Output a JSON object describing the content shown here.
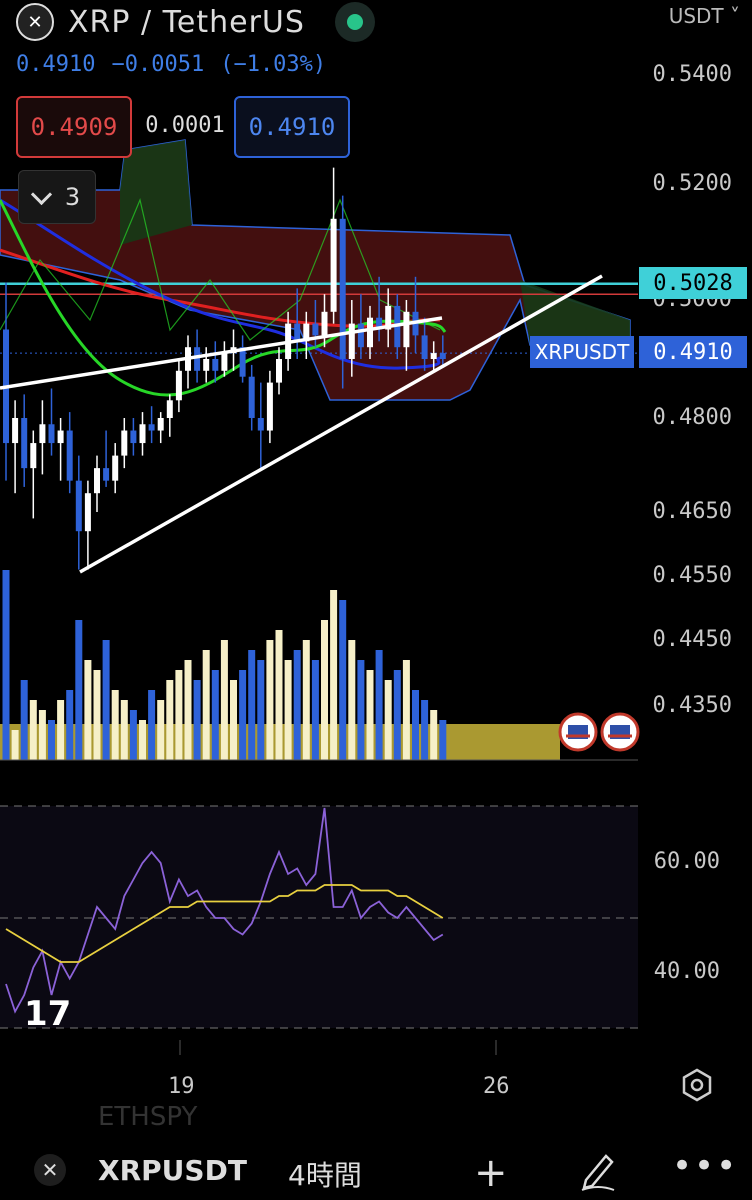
{
  "header": {
    "logo_icon": "xrp-logo-icon",
    "title": "XRP / TetherUS",
    "live_icon": "live-status-dot-icon",
    "last_price": "0.4910",
    "change": "−0.0051",
    "change_pct": "(−1.03%)",
    "currency": "USDT ˅"
  },
  "order": {
    "bid": "0.4909",
    "spread": "0.0001",
    "ask": "0.4910"
  },
  "indicators_collapse": {
    "count": "3",
    "icon": "chevron-down-icon"
  },
  "price_axis": {
    "labels": [
      "0.5400",
      "0.5200",
      "0.5000",
      "0.4800",
      "0.4650",
      "0.4550",
      "0.4450",
      "0.4350"
    ],
    "highlight": "0.5028",
    "current": "0.4910",
    "symbol_tag": "XRPUSDT"
  },
  "rsi_axis": {
    "labels": [
      "60.00",
      "40.00"
    ]
  },
  "time_axis": {
    "labels": [
      "19",
      "26"
    ]
  },
  "watermark": "17",
  "ghost_text": "ETHSPY",
  "toolbar": {
    "close_icon": "close-icon",
    "symbol": "XRPUSDT",
    "interval": "4時間",
    "plus": "+",
    "draw_icon": "pencil-draw-icon",
    "more": "•••"
  },
  "colors": {
    "up": "#ffffff",
    "down": "#2e62d8",
    "ma_fast": "#27d627",
    "ma_mid": "#e02020",
    "ma_slow": "#1f2ee0",
    "cloud_bear": "#5a1414",
    "cloud_bull": "#163a16",
    "cyan": "#3fd0d8",
    "rsi": "#8b62d8",
    "rsi_ma": "#e8d040",
    "trend": "#ffffff"
  },
  "chart_data": {
    "type": "candlestick",
    "symbol": "XRPUSDT",
    "interval": "4時間",
    "y_ticks": [
      0.54,
      0.52,
      0.5,
      0.48,
      0.465,
      0.455,
      0.445,
      0.435
    ],
    "horizontal_lines": [
      0.5028,
      0.501
    ],
    "last_price": 0.491,
    "candles": [
      [
        0.495,
        0.503,
        0.47,
        0.476
      ],
      [
        0.476,
        0.483,
        0.468,
        0.48
      ],
      [
        0.48,
        0.484,
        0.469,
        0.472
      ],
      [
        0.472,
        0.478,
        0.464,
        0.476
      ],
      [
        0.476,
        0.483,
        0.471,
        0.479
      ],
      [
        0.479,
        0.485,
        0.474,
        0.476
      ],
      [
        0.476,
        0.48,
        0.47,
        0.478
      ],
      [
        0.478,
        0.481,
        0.468,
        0.47
      ],
      [
        0.47,
        0.474,
        0.456,
        0.462
      ],
      [
        0.462,
        0.47,
        0.456,
        0.468
      ],
      [
        0.468,
        0.474,
        0.465,
        0.472
      ],
      [
        0.472,
        0.478,
        0.469,
        0.47
      ],
      [
        0.47,
        0.476,
        0.468,
        0.474
      ],
      [
        0.474,
        0.48,
        0.472,
        0.478
      ],
      [
        0.478,
        0.48,
        0.474,
        0.476
      ],
      [
        0.476,
        0.481,
        0.474,
        0.479
      ],
      [
        0.479,
        0.482,
        0.476,
        0.478
      ],
      [
        0.478,
        0.481,
        0.476,
        0.48
      ],
      [
        0.48,
        0.484,
        0.477,
        0.483
      ],
      [
        0.483,
        0.49,
        0.481,
        0.488
      ],
      [
        0.488,
        0.494,
        0.485,
        0.492
      ],
      [
        0.492,
        0.495,
        0.486,
        0.488
      ],
      [
        0.488,
        0.492,
        0.486,
        0.49
      ],
      [
        0.49,
        0.493,
        0.486,
        0.488
      ],
      [
        0.488,
        0.493,
        0.487,
        0.491
      ],
      [
        0.491,
        0.495,
        0.488,
        0.492
      ],
      [
        0.492,
        0.494,
        0.486,
        0.487
      ],
      [
        0.487,
        0.489,
        0.478,
        0.48
      ],
      [
        0.48,
        0.486,
        0.472,
        0.478
      ],
      [
        0.478,
        0.488,
        0.476,
        0.486
      ],
      [
        0.486,
        0.492,
        0.484,
        0.49
      ],
      [
        0.49,
        0.498,
        0.488,
        0.496
      ],
      [
        0.496,
        0.502,
        0.49,
        0.493
      ],
      [
        0.493,
        0.498,
        0.49,
        0.496
      ],
      [
        0.496,
        0.5,
        0.492,
        0.494
      ],
      [
        0.494,
        0.501,
        0.492,
        0.498
      ],
      [
        0.498,
        0.523,
        0.496,
        0.514
      ],
      [
        0.514,
        0.518,
        0.485,
        0.49
      ],
      [
        0.49,
        0.5,
        0.487,
        0.496
      ],
      [
        0.496,
        0.501,
        0.49,
        0.492
      ],
      [
        0.492,
        0.499,
        0.49,
        0.497
      ],
      [
        0.497,
        0.504,
        0.493,
        0.495
      ],
      [
        0.495,
        0.502,
        0.492,
        0.499
      ],
      [
        0.499,
        0.501,
        0.49,
        0.492
      ],
      [
        0.492,
        0.5,
        0.488,
        0.498
      ],
      [
        0.498,
        0.504,
        0.491,
        0.494
      ],
      [
        0.494,
        0.497,
        0.488,
        0.49
      ],
      [
        0.49,
        0.493,
        0.488,
        0.491
      ],
      [
        0.491,
        0.494,
        0.489,
        0.49
      ]
    ],
    "volume": [
      0.95,
      0.15,
      0.4,
      0.3,
      0.25,
      0.2,
      0.3,
      0.35,
      0.7,
      0.5,
      0.45,
      0.6,
      0.35,
      0.3,
      0.25,
      0.2,
      0.35,
      0.3,
      0.4,
      0.45,
      0.5,
      0.4,
      0.55,
      0.45,
      0.6,
      0.4,
      0.45,
      0.55,
      0.5,
      0.6,
      0.65,
      0.5,
      0.55,
      0.6,
      0.5,
      0.7,
      0.85,
      0.8,
      0.6,
      0.5,
      0.45,
      0.55,
      0.4,
      0.45,
      0.5,
      0.35,
      0.3,
      0.25,
      0.2
    ],
    "rsi": [
      38,
      33,
      36,
      41,
      44,
      36,
      42,
      39,
      42,
      47,
      52,
      50,
      48,
      54,
      57,
      60,
      62,
      60,
      53,
      57,
      54,
      55,
      52,
      50,
      50,
      48,
      47,
      49,
      53,
      58,
      62,
      58,
      59,
      56,
      58,
      70,
      52,
      52,
      55,
      50,
      52,
      53,
      51,
      50,
      52,
      50,
      48,
      46,
      47
    ],
    "rsi_ma": [
      48,
      47,
      46,
      45,
      44,
      43,
      42,
      42,
      42,
      43,
      44,
      45,
      46,
      47,
      48,
      49,
      50,
      51,
      52,
      52,
      52,
      53,
      53,
      53,
      53,
      53,
      53,
      53,
      53,
      53,
      54,
      54,
      55,
      55,
      55,
      56,
      56,
      56,
      56,
      55,
      55,
      55,
      55,
      54,
      54,
      53,
      52,
      51,
      50
    ],
    "rsi_ticks": [
      60,
      40
    ]
  }
}
